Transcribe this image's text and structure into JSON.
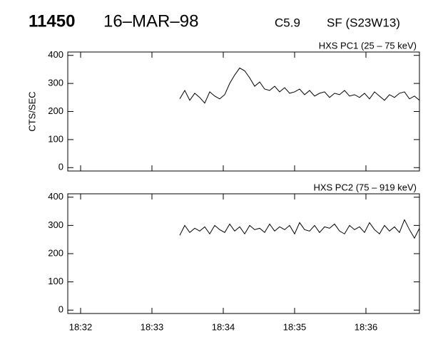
{
  "header": {
    "id": "11450",
    "date": "16–MAR–98",
    "class": "C5.9",
    "location": "SF (S23W13)"
  },
  "chart_data": [
    {
      "type": "line",
      "y_label": "CTS/SEC",
      "x": [
        33.39,
        33.46,
        33.53,
        33.6,
        33.67,
        33.74,
        33.81,
        33.88,
        33.95,
        34.02,
        34.09,
        34.16,
        34.23,
        34.3,
        34.37,
        34.44,
        34.51,
        34.58,
        34.65,
        34.72,
        34.79,
        34.86,
        34.93,
        35.0,
        35.07,
        35.14,
        35.21,
        35.28,
        35.35,
        35.42,
        35.49,
        35.56,
        35.63,
        35.7,
        35.77,
        35.84,
        35.91,
        35.98,
        36.05,
        36.12,
        36.19,
        36.26,
        36.33,
        36.4,
        36.47,
        36.54,
        36.61,
        36.68,
        36.75
      ],
      "series": [
        {
          "name": "HXS PC1 (25 – 75 keV)",
          "color": "#000000",
          "values": [
            245,
            275,
            240,
            265,
            250,
            230,
            270,
            255,
            245,
            260,
            300,
            330,
            355,
            345,
            320,
            290,
            305,
            280,
            275,
            290,
            270,
            285,
            265,
            270,
            280,
            260,
            275,
            255,
            265,
            270,
            250,
            265,
            260,
            275,
            255,
            260,
            250,
            265,
            245,
            270,
            255,
            240,
            260,
            250,
            265,
            270,
            245,
            255,
            240
          ]
        }
      ],
      "xlim": [
        31.82,
        36.75
      ],
      "ylim": [
        -12,
        412
      ],
      "yticks": [
        0,
        100,
        200,
        300,
        400
      ]
    },
    {
      "type": "line",
      "x": [
        33.39,
        33.46,
        33.53,
        33.6,
        33.67,
        33.74,
        33.81,
        33.88,
        33.95,
        34.02,
        34.09,
        34.16,
        34.23,
        34.3,
        34.37,
        34.44,
        34.51,
        34.58,
        34.65,
        34.72,
        34.79,
        34.86,
        34.93,
        35.0,
        35.07,
        35.14,
        35.21,
        35.28,
        35.35,
        35.42,
        35.49,
        35.56,
        35.63,
        35.7,
        35.77,
        35.84,
        35.91,
        35.98,
        36.05,
        36.12,
        36.19,
        36.26,
        36.33,
        36.4,
        36.47,
        36.54,
        36.61,
        36.68,
        36.75
      ],
      "series": [
        {
          "name": "HXS PC2 (75 – 919 keV)",
          "color": "#000000",
          "values": [
            265,
            300,
            275,
            290,
            280,
            295,
            270,
            300,
            285,
            275,
            305,
            280,
            295,
            270,
            300,
            285,
            290,
            275,
            305,
            280,
            295,
            285,
            300,
            270,
            310,
            285,
            280,
            300,
            275,
            295,
            290,
            305,
            280,
            270,
            300,
            285,
            295,
            275,
            310,
            285,
            270,
            300,
            280,
            295,
            275,
            320,
            285,
            255,
            290
          ]
        }
      ],
      "xlim": [
        31.82,
        36.75
      ],
      "ylim": [
        -12,
        412
      ],
      "yticks": [
        0,
        100,
        200,
        300,
        400
      ],
      "xticks": [
        {
          "value": 32,
          "label": "18:32"
        },
        {
          "value": 33,
          "label": "18:33"
        },
        {
          "value": 34,
          "label": "18:34"
        },
        {
          "value": 35,
          "label": "18:35"
        },
        {
          "value": 36,
          "label": "18:36"
        }
      ]
    }
  ]
}
